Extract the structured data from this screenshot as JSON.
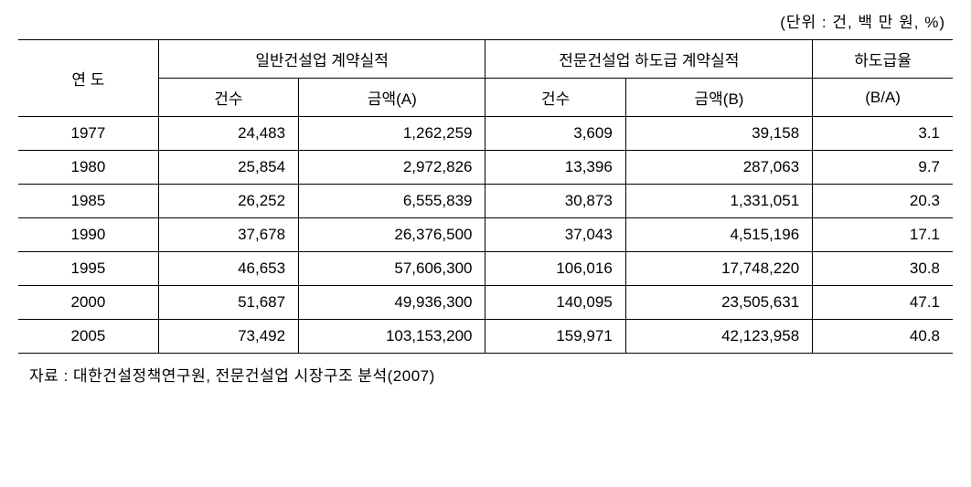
{
  "unit_label": "(단위 : 건, 백 만 원,   %)",
  "headers": {
    "year": "연 도",
    "group_general": "일반건설업 계약실적",
    "group_special": "전문건설업 하도급 계약실적",
    "count": "건수",
    "amount_a": "금액(A)",
    "amount_b": "금액(B)",
    "rate": "하도급율",
    "rate_sub": "(B/A)"
  },
  "rows": [
    {
      "year": "1977",
      "g_count": "24,483",
      "g_amount": "1,262,259",
      "s_count": "3,609",
      "s_amount": "39,158",
      "rate": "3.1"
    },
    {
      "year": "1980",
      "g_count": "25,854",
      "g_amount": "2,972,826",
      "s_count": "13,396",
      "s_amount": "287,063",
      "rate": "9.7"
    },
    {
      "year": "1985",
      "g_count": "26,252",
      "g_amount": "6,555,839",
      "s_count": "30,873",
      "s_amount": "1,331,051",
      "rate": "20.3"
    },
    {
      "year": "1990",
      "g_count": "37,678",
      "g_amount": "26,376,500",
      "s_count": "37,043",
      "s_amount": "4,515,196",
      "rate": "17.1"
    },
    {
      "year": "1995",
      "g_count": "46,653",
      "g_amount": "57,606,300",
      "s_count": "106,016",
      "s_amount": "17,748,220",
      "rate": "30.8"
    },
    {
      "year": "2000",
      "g_count": "51,687",
      "g_amount": "49,936,300",
      "s_count": "140,095",
      "s_amount": "23,505,631",
      "rate": "47.1"
    },
    {
      "year": "2005",
      "g_count": "73,492",
      "g_amount": "103,153,200",
      "s_count": "159,971",
      "s_amount": "42,123,958",
      "rate": "40.8"
    }
  ],
  "source": "자료 : 대한건설정책연구원, 전문건설업 시장구조 분석(2007)",
  "style": {
    "fontsize": 17,
    "border_color": "#000000",
    "background": "#ffffff",
    "col_widths_pct": {
      "year": 15,
      "count_like": 15,
      "amount_like": 20,
      "rate": 15
    }
  }
}
